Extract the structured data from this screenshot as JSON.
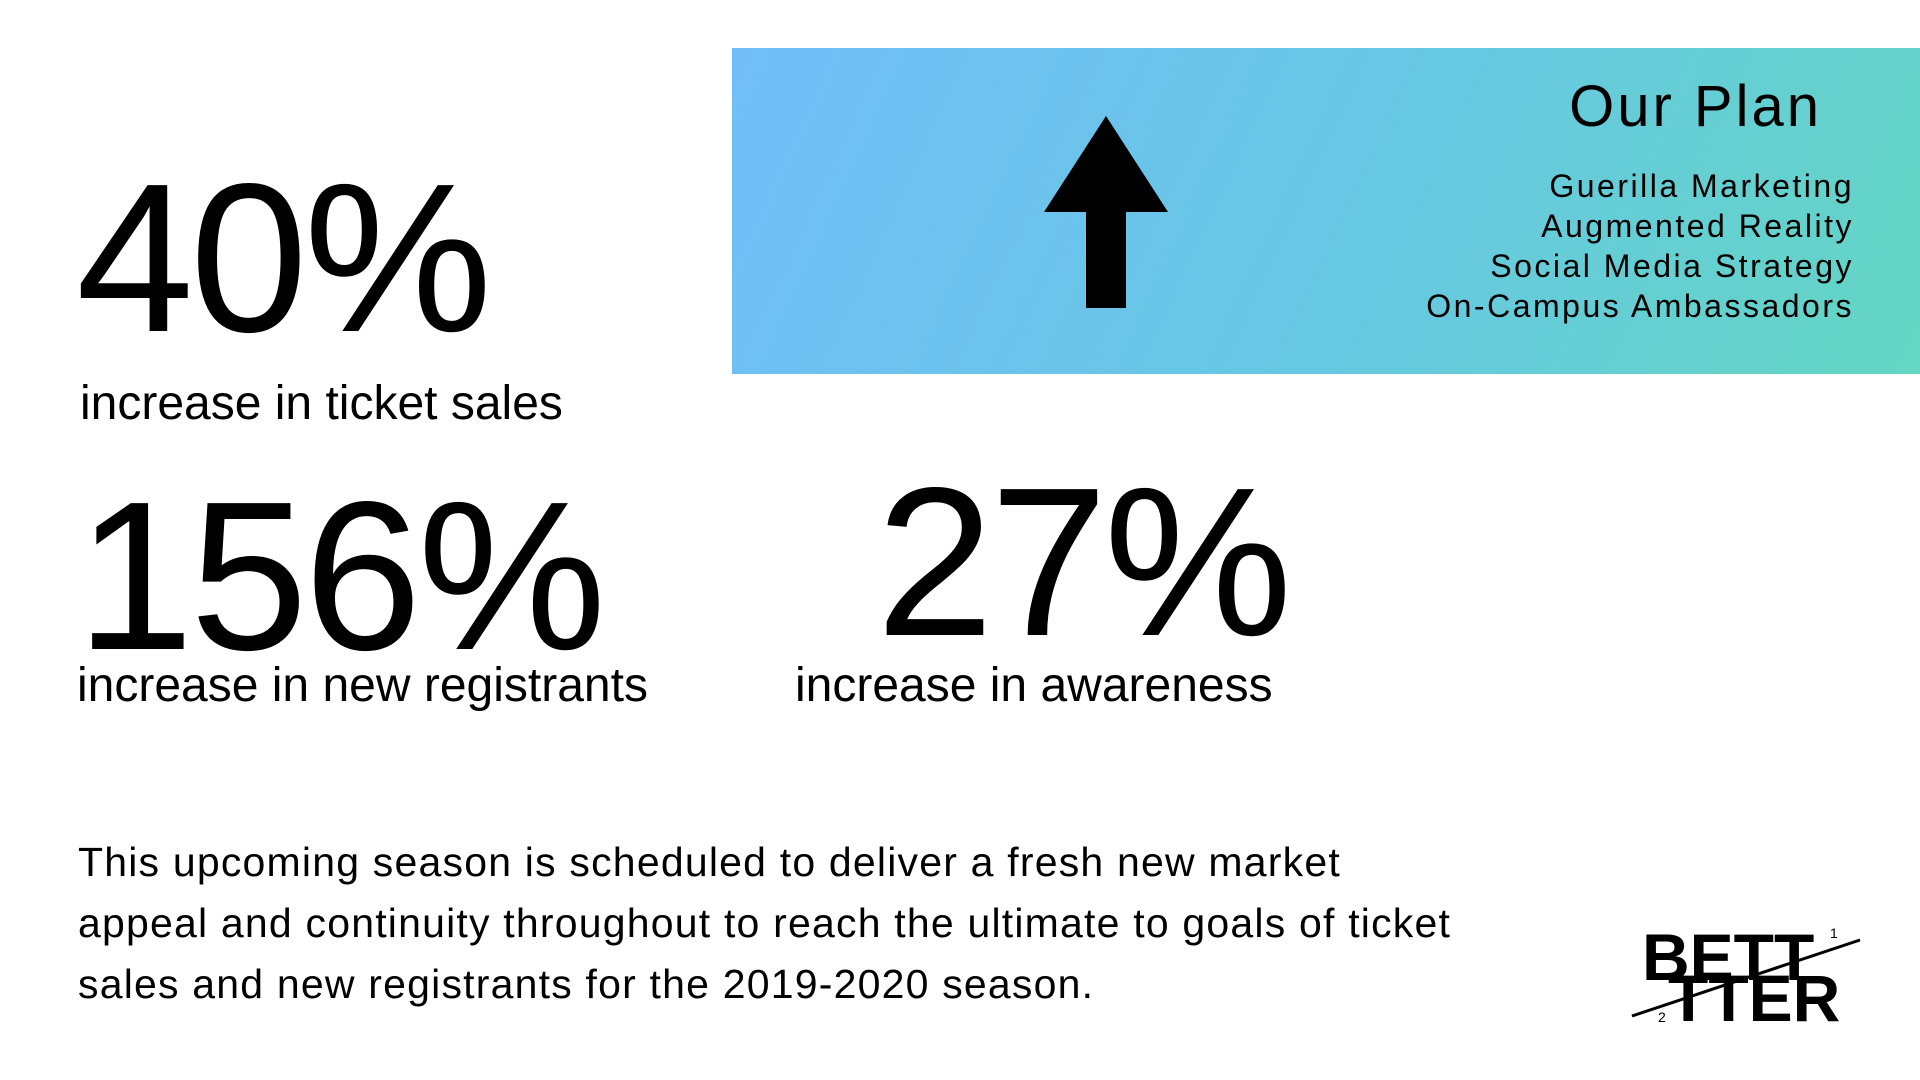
{
  "stats": [
    {
      "value": "40%",
      "label": "increase in ticket sales"
    },
    {
      "value": "156%",
      "label": "increase in new registrants"
    },
    {
      "value": "27%",
      "label": "increase in awareness"
    }
  ],
  "plan": {
    "title": "Our Plan",
    "items": [
      "Guerilla Marketing",
      "Augmented Reality",
      "Social Media Strategy",
      "On-Campus Ambassadors"
    ],
    "gradient_start": "#72bdf8",
    "gradient_end": "#64d6c2",
    "arrow_icon": "up-arrow-icon"
  },
  "summary": "This upcoming season is scheduled to deliver a fresh new market appeal and continuity throughout to reach the ultimate to goals of ticket sales and new registrants for the 2019-2020 season.",
  "logo": {
    "top": "BETT",
    "bottom": "TTER",
    "sup": "1",
    "sub": "2"
  }
}
